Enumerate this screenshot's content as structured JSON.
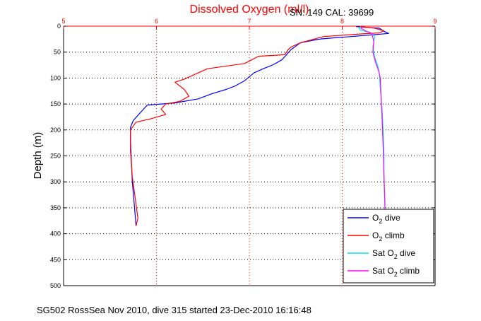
{
  "title": "Dissolved Oxygen (ml/l)",
  "sn_cal": "SN: 149  CAL: 39699",
  "footer": "SG502 RossSea Nov 2010, dive 315 started 23-Dec-2010 16:16:48",
  "colors": {
    "dive": "#0000ff",
    "climb": "#ff0000",
    "sat_dive": "#00e5ee",
    "sat_climb": "#ff00ff",
    "top_axis": "#ff0000"
  },
  "chart_data": {
    "type": "line",
    "title": "Dissolved Oxygen (ml/l)",
    "ylabel": "Depth (m)",
    "xlabel": "",
    "xlim": [
      5,
      9
    ],
    "ylim": [
      0,
      500
    ],
    "y_reversed": true,
    "x_axis_position": "top",
    "grid": true,
    "legend_position": "bottom-right",
    "xticks": [
      "5",
      "6",
      "7",
      "8",
      "9"
    ],
    "yticks": [
      "0",
      "50",
      "100",
      "150",
      "200",
      "250",
      "300",
      "350",
      "400",
      "450",
      "500"
    ],
    "series": [
      {
        "name": "O2 dive",
        "legend_main": "O",
        "legend_sub": "2",
        "legend_rest": " dive",
        "points": [
          [
            8.15,
            1
          ],
          [
            8.4,
            4
          ],
          [
            8.45,
            10
          ],
          [
            8.5,
            14
          ],
          [
            8.3,
            17
          ],
          [
            8.1,
            20
          ],
          [
            7.95,
            22
          ],
          [
            7.75,
            25
          ],
          [
            7.55,
            32
          ],
          [
            7.45,
            45
          ],
          [
            7.4,
            55
          ],
          [
            7.35,
            65
          ],
          [
            7.25,
            75
          ],
          [
            7.15,
            82
          ],
          [
            7.05,
            90
          ],
          [
            6.95,
            105
          ],
          [
            6.85,
            115
          ],
          [
            6.75,
            122
          ],
          [
            6.6,
            130
          ],
          [
            6.45,
            140
          ],
          [
            6.2,
            148
          ],
          [
            5.9,
            152
          ],
          [
            5.85,
            162
          ],
          [
            5.8,
            172
          ],
          [
            5.75,
            182
          ],
          [
            5.72,
            195
          ],
          [
            5.72,
            220
          ],
          [
            5.73,
            260
          ],
          [
            5.74,
            300
          ],
          [
            5.76,
            340
          ],
          [
            5.78,
            385
          ]
        ]
      },
      {
        "name": "O2 climb",
        "legend_main": "O",
        "legend_sub": "2",
        "legend_rest": " climb",
        "points": [
          [
            8.2,
            1
          ],
          [
            8.35,
            4
          ],
          [
            8.45,
            9
          ],
          [
            8.4,
            13
          ],
          [
            8.2,
            15
          ],
          [
            7.8,
            20
          ],
          [
            7.55,
            32
          ],
          [
            7.45,
            40
          ],
          [
            7.42,
            45
          ],
          [
            7.38,
            55
          ],
          [
            7.1,
            58
          ],
          [
            6.95,
            72
          ],
          [
            6.55,
            82
          ],
          [
            6.45,
            90
          ],
          [
            6.3,
            102
          ],
          [
            6.2,
            108
          ],
          [
            6.3,
            122
          ],
          [
            6.35,
            135
          ],
          [
            6.25,
            145
          ],
          [
            6.1,
            150
          ],
          [
            6.05,
            160
          ],
          [
            6.1,
            170
          ],
          [
            5.95,
            178
          ],
          [
            5.78,
            185
          ],
          [
            5.72,
            200
          ],
          [
            5.72,
            240
          ],
          [
            5.74,
            290
          ],
          [
            5.77,
            330
          ],
          [
            5.8,
            370
          ],
          [
            5.78,
            385
          ]
        ]
      },
      {
        "name": "Sat O2 dive",
        "legend_main": "Sat O",
        "legend_sub": "2",
        "legend_rest": " dive",
        "points": [
          [
            8.2,
            1
          ],
          [
            8.18,
            4
          ],
          [
            8.2,
            8
          ],
          [
            8.3,
            12
          ],
          [
            8.35,
            20
          ],
          [
            8.33,
            40
          ],
          [
            8.35,
            60
          ],
          [
            8.38,
            75
          ],
          [
            8.4,
            90
          ],
          [
            8.41,
            120
          ],
          [
            8.43,
            160
          ],
          [
            8.44,
            200
          ],
          [
            8.45,
            250
          ],
          [
            8.45,
            300
          ],
          [
            8.46,
            350
          ],
          [
            8.46,
            385
          ]
        ]
      },
      {
        "name": "Sat O2 climb",
        "legend_main": "Sat O",
        "legend_sub": "2",
        "legend_rest": " climb",
        "points": [
          [
            8.22,
            1
          ],
          [
            8.2,
            4
          ],
          [
            8.25,
            9
          ],
          [
            8.32,
            14
          ],
          [
            8.34,
            30
          ],
          [
            8.33,
            50
          ],
          [
            8.36,
            70
          ],
          [
            8.39,
            85
          ],
          [
            8.41,
            100
          ],
          [
            8.42,
            140
          ],
          [
            8.43,
            180
          ],
          [
            8.44,
            230
          ],
          [
            8.45,
            290
          ],
          [
            8.46,
            340
          ],
          [
            8.46,
            385
          ]
        ]
      }
    ]
  }
}
